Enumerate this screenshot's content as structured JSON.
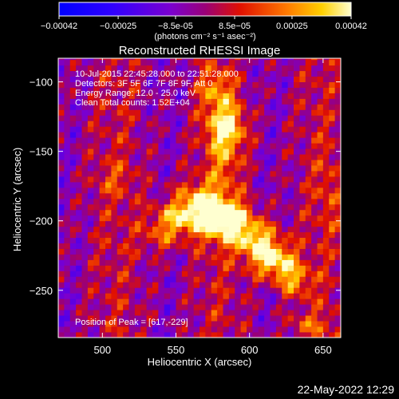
{
  "chart_data": {
    "type": "heatmap",
    "title": "Reconstructed RHESSI Image",
    "xlabel": "Heliocentric X (arcsec)",
    "ylabel": "Heliocentric Y (arcsec)",
    "xlim": [
      470,
      662
    ],
    "ylim": [
      -284,
      -83
    ],
    "x_ticks": [
      500,
      550,
      600,
      650
    ],
    "y_ticks": [
      -100,
      -150,
      -200,
      -250
    ],
    "colorbar": {
      "range": [
        -0.00042,
        0.00042
      ],
      "tick_values": [
        -0.00042,
        -0.00025,
        -8.5e-05,
        8.5e-05,
        0.00025,
        0.00042
      ],
      "tick_labels": [
        "-0.00042",
        "-0.00025",
        "-8.5e-05",
        "8.5e-05",
        "0.00025",
        "0.00042"
      ],
      "unit_label": "(photons cm⁻² s⁻¹ asec⁻²)"
    },
    "annotations": [
      "10-Jul-2015 22:45:28.000 to 22:51:28.000",
      "Detectors: 3F 5F 6F 7F 8F 9F, Att 0",
      "Energy Range: 12.0 - 25.0 keV",
      "Clean     Total counts: 1.52E+04"
    ],
    "peak_label": "Position of Peak = [617,-229]",
    "peak": {
      "x": 617,
      "y": -229
    },
    "pixel_size_arcsec": 4,
    "sources": [
      {
        "x": 584,
        "y": -133,
        "sx": 9,
        "sy": 12,
        "amp": 0.00042
      },
      {
        "x": 577,
        "y": -105,
        "sx": 8,
        "sy": 10,
        "amp": 0.00022
      },
      {
        "x": 567,
        "y": -190,
        "sx": 14,
        "sy": 12,
        "amp": 0.0004
      },
      {
        "x": 586,
        "y": -200,
        "sx": 12,
        "sy": 10,
        "amp": 0.00037
      },
      {
        "x": 605,
        "y": -214,
        "sx": 11,
        "sy": 10,
        "amp": 0.00036
      },
      {
        "x": 617,
        "y": -229,
        "sx": 10,
        "sy": 9,
        "amp": 0.00042
      },
      {
        "x": 630,
        "y": -243,
        "sx": 8,
        "sy": 8,
        "amp": 0.00026
      },
      {
        "x": 548,
        "y": -199,
        "sx": 12,
        "sy": 8,
        "amp": 0.00024
      },
      {
        "x": 540,
        "y": -213,
        "sx": 10,
        "sy": 8,
        "amp": 0.00016
      },
      {
        "x": 583,
        "y": -160,
        "sx": 8,
        "sy": 10,
        "amp": 0.00014
      },
      {
        "x": 640,
        "y": -275,
        "sx": 12,
        "sy": 6,
        "amp": 0.00013
      },
      {
        "x": 655,
        "y": -180,
        "sx": 6,
        "sy": 20,
        "amp": 0.0001
      },
      {
        "x": 508,
        "y": -170,
        "sx": 10,
        "sy": 8,
        "amp": 0.0001
      }
    ]
  },
  "footer": {
    "timestamp": "22-May-2022 12:29"
  }
}
